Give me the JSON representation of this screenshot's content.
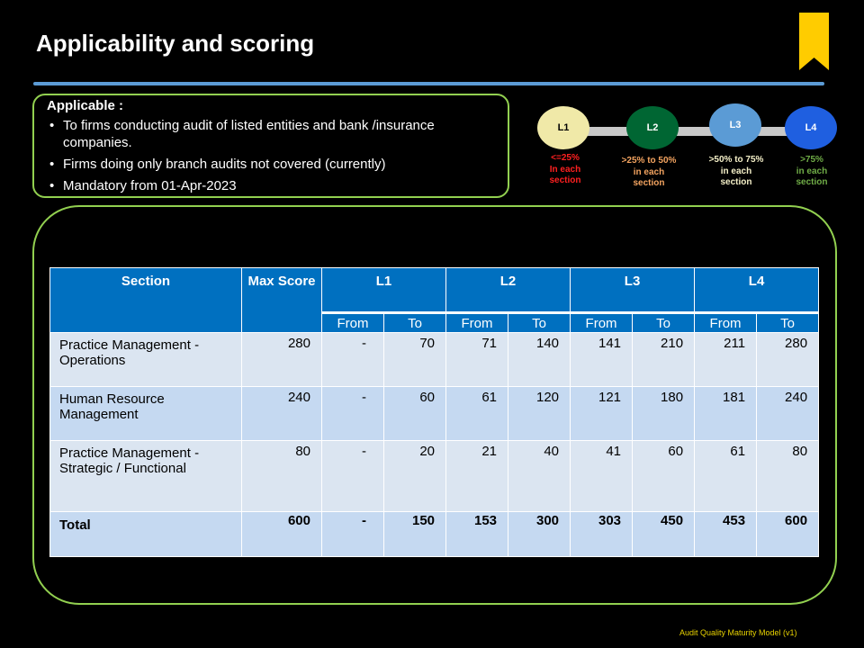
{
  "title": "Applicability and scoring",
  "applicable": {
    "heading": "Applicable  :",
    "bullets": [
      "To firms conducting audit of listed entities and bank /insurance companies.",
      "Firms doing only branch audits not covered (currently)",
      "Mandatory from 01-Apr-2023"
    ]
  },
  "levels": [
    {
      "label": "L1",
      "desc_lines": [
        "<=25%",
        "In each",
        "section"
      ],
      "circle_color": "#f0e9a8",
      "text_color": "#000000",
      "desc_color": "#ff2020"
    },
    {
      "label": "L2",
      "desc_lines": [
        ">25% to 50%",
        "in each",
        "section"
      ],
      "circle_color": "#006633",
      "text_color": "#ffffff",
      "desc_color": "#f4a460"
    },
    {
      "label": "L3",
      "desc_lines": [
        ">50% to 75%",
        "in each",
        "section"
      ],
      "circle_color": "#5b9bd5",
      "text_color": "#ffffff",
      "desc_color": "#f5f0c8"
    },
    {
      "label": "L4",
      "desc_lines": [
        ">75%",
        "in each",
        "section"
      ],
      "circle_color": "#1f5fe0",
      "text_color": "#ffffff",
      "desc_color": "#70ad47"
    }
  ],
  "table": {
    "headers": {
      "section": "Section",
      "max_score": "Max Score",
      "levels": [
        "L1",
        "L2",
        "L3",
        "L4"
      ],
      "from": "From",
      "to": "To"
    },
    "rows": [
      {
        "section": "Practice Management - Operations",
        "max": "280",
        "values": [
          "-",
          "70",
          "71",
          "140",
          "141",
          "210",
          "211",
          "280"
        ]
      },
      {
        "section": "Human Resource Management",
        "max": "240",
        "values": [
          "-",
          "60",
          "61",
          "120",
          "121",
          "180",
          "181",
          "240"
        ]
      },
      {
        "section": "Practice Management - Strategic / Functional",
        "max": "80",
        "values": [
          "-",
          "20",
          "21",
          "40",
          "41",
          "60",
          "61",
          "80"
        ]
      }
    ],
    "total": {
      "section": "Total",
      "max": "600",
      "values": [
        "-",
        "150",
        "153",
        "300",
        "303",
        "450",
        "453",
        "600"
      ]
    }
  },
  "footer": "Audit Quality Maturity Model (v1)",
  "colors": {
    "accent_line": "#5b9bd5",
    "frame": "#92d050",
    "header_bg": "#0070c0",
    "bookmark": "#ffcc00"
  }
}
